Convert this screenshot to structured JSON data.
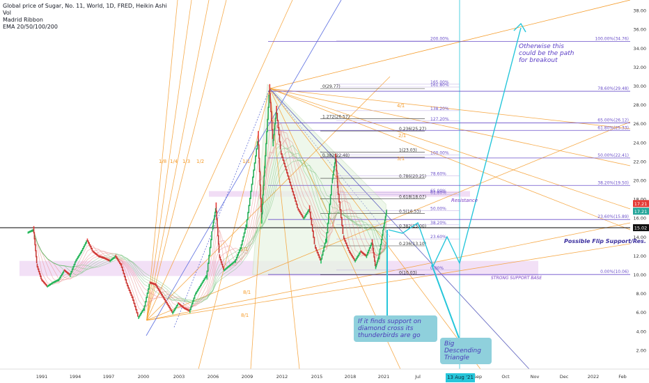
{
  "legend": {
    "title": "Global price of Sugar, No. 11, World, 1D, FRED, Heikin Ashi",
    "lines": [
      "Vol",
      "Madrid Ribbon",
      "EMA 20/50/100/200"
    ]
  },
  "colors": {
    "up": "#22c55e",
    "down": "#e53935",
    "fib": "#6a4fc9",
    "fan": "#f59c2b",
    "accent": "#26c6da",
    "support_zone": "#e7c6ee",
    "triangle": "#e8f5e3"
  },
  "chart_data": {
    "type": "line",
    "y_axis": {
      "range": [
        2,
        38
      ],
      "ticks": [
        2,
        4,
        6,
        8,
        10,
        12,
        14,
        16,
        18,
        20,
        22,
        24,
        26,
        28,
        30,
        32,
        34,
        36,
        38
      ],
      "labels": [
        "2.00",
        "4.00",
        "6.00",
        "8.00",
        "10.00",
        "12.00",
        "14.00",
        "16.00",
        "18.00",
        "20.00",
        "22.00",
        "24.00",
        "26.00",
        "28.00",
        "30.00",
        "32.00",
        "34.00",
        "36.00",
        "38.00"
      ]
    },
    "x_axis": {
      "labels": [
        "1991",
        "1994",
        "1997",
        "2000",
        "2003",
        "2006",
        "2009",
        "2012",
        "2015",
        "2018",
        "2021",
        "Jul",
        "Sep",
        "Oct",
        "Nov",
        "Dec",
        "2022",
        "Feb"
      ]
    },
    "series": [
      {
        "values": [
          [
            1989.8,
            14.5
          ],
          [
            1990.3,
            14.8
          ],
          [
            1990.6,
            11
          ],
          [
            1991,
            9.5
          ],
          [
            1991.5,
            8.8
          ],
          [
            1992,
            9.2
          ],
          [
            1992.5,
            9.5
          ],
          [
            1993,
            10.5
          ],
          [
            1993.5,
            10
          ],
          [
            1994,
            11.5
          ],
          [
            1994.5,
            12.5
          ],
          [
            1995,
            13.7
          ],
          [
            1995.5,
            12.5
          ],
          [
            1996,
            12
          ],
          [
            1996.5,
            11.8
          ],
          [
            1997,
            11.5
          ],
          [
            1997.5,
            12
          ],
          [
            1998,
            11
          ],
          [
            1998.5,
            9
          ],
          [
            1999,
            7.5
          ],
          [
            1999.5,
            5.5
          ],
          [
            2000,
            6.5
          ],
          [
            2000.5,
            9.2
          ],
          [
            2001,
            9
          ],
          [
            2001.5,
            8
          ],
          [
            2002,
            7
          ],
          [
            2002.5,
            6
          ],
          [
            2003,
            7
          ],
          [
            2003.5,
            6.5
          ],
          [
            2004,
            6.2
          ],
          [
            2004.5,
            8
          ],
          [
            2005,
            9
          ],
          [
            2005.5,
            10
          ],
          [
            2006,
            15
          ],
          [
            2006.3,
            17.2
          ],
          [
            2006.6,
            12
          ],
          [
            2007,
            10.5
          ],
          [
            2007.5,
            11
          ],
          [
            2008,
            11.5
          ],
          [
            2008.5,
            13
          ],
          [
            2009,
            15.5
          ],
          [
            2009.5,
            20
          ],
          [
            2010,
            24.5
          ],
          [
            2010.3,
            16
          ],
          [
            2010.6,
            22
          ],
          [
            2011,
            29.7
          ],
          [
            2011.3,
            24
          ],
          [
            2011.6,
            27.5
          ],
          [
            2012,
            23
          ],
          [
            2012.5,
            21
          ],
          [
            2013,
            19
          ],
          [
            2013.5,
            17
          ],
          [
            2014,
            16
          ],
          [
            2014.5,
            17
          ],
          [
            2015,
            13
          ],
          [
            2015.5,
            11.5
          ],
          [
            2016,
            14
          ],
          [
            2016.5,
            20
          ],
          [
            2016.8,
            22.5
          ],
          [
            2017,
            19
          ],
          [
            2017.5,
            14
          ],
          [
            2018,
            12.5
          ],
          [
            2018.5,
            11.5
          ],
          [
            2019,
            12.5
          ],
          [
            2019.5,
            12
          ],
          [
            2020,
            13.5
          ],
          [
            2020.3,
            10.8
          ],
          [
            2020.6,
            12
          ],
          [
            2021,
            15
          ],
          [
            2021.3,
            17
          ]
        ]
      }
    ],
    "level_lines": [
      {
        "price": 29.48,
        "label": "78.60%(29.48)"
      },
      {
        "price": 34.76,
        "label": "100.00%(34.76)"
      },
      {
        "price": 26.12,
        "label": "65.00%(26.12)"
      },
      {
        "price": 25.33,
        "label": "61.80%(25.33)"
      },
      {
        "price": 22.41,
        "label": "50.00%(22.41)"
      },
      {
        "price": 19.5,
        "label": "38.20%(19.50)"
      },
      {
        "price": 15.89,
        "label": "23.60%(15.89)"
      },
      {
        "price": 10.06,
        "label": "0.00%(10.06)"
      }
    ],
    "inner_fib_labels": [
      {
        "price": 29.77,
        "label": "0(29.77)"
      },
      {
        "price": 26.57,
        "label": "1.272(26.57)"
      },
      {
        "price": 25.27,
        "label": "0.236(25.27)"
      },
      {
        "price": 22.48,
        "label": "0.382(22.48)"
      },
      {
        "price": 23.03,
        "label": "1(23.03)"
      },
      {
        "price": 20.25,
        "label": "0.786(20.25)"
      },
      {
        "price": 18.07,
        "label": "0.618(18.07)"
      },
      {
        "price": 16.53,
        "label": "0.5(16.53)"
      },
      {
        "price": 15.0,
        "label": "0.382(15.00)"
      },
      {
        "price": 13.1,
        "label": "0.236(13.10)"
      },
      {
        "price": 10.03,
        "label": "0(10.03)"
      }
    ],
    "pct_labels": [
      {
        "price": 34.9,
        "label": "200.00%"
      },
      {
        "price": 30.3,
        "label": "165.00%"
      },
      {
        "price": 30.0,
        "label": "161.80%"
      },
      {
        "price": 27.5,
        "label": "138.20%"
      },
      {
        "price": 26.4,
        "label": "127.20%"
      },
      {
        "price": 22.8,
        "label": "100.00%"
      },
      {
        "price": 20.6,
        "label": "78.60%"
      },
      {
        "price": 18.8,
        "label": "65.00%"
      },
      {
        "price": 18.6,
        "label": "61.80%"
      },
      {
        "price": 16.9,
        "label": "50.00%"
      },
      {
        "price": 15.4,
        "label": "38.20%"
      },
      {
        "price": 13.9,
        "label": "23.60%"
      },
      {
        "price": 10.6,
        "label": "0.00%"
      }
    ],
    "fan_labels": [
      "1/8",
      "1/4",
      "1/3",
      "1/2",
      "1/1",
      "1/1",
      "8/1",
      "8/1",
      "4/1",
      "2/1",
      "3/1"
    ],
    "price_tags": [
      {
        "price": 17.21,
        "label": "17.21"
      },
      {
        "price": 17.21,
        "label": "17.21"
      },
      {
        "price": 15.02,
        "label": "15.02"
      }
    ]
  },
  "annotations": {
    "breakout": "Otherwise this could be the path for breakout",
    "resistance": "Resistance",
    "flip": "Possible Flip Support/Res.",
    "support_base": "STRONG SUPPORT BASE",
    "diamond": "If it finds support on diamond cross its thunderbirds are go",
    "triangle": "Big Descending Triangle"
  },
  "date_flag": "13 Aug '21"
}
